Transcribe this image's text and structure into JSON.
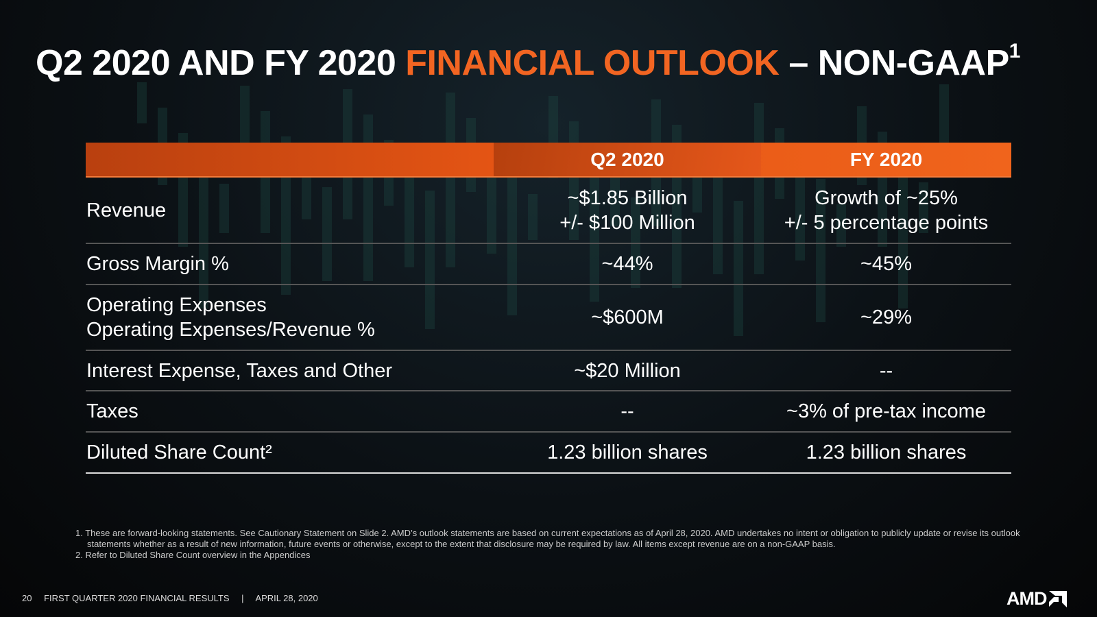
{
  "title": {
    "part1": "Q2 2020 AND FY 2020 ",
    "part2": "FINANCIAL OUTLOOK",
    "part3": " – NON-GAAP",
    "sup": "1"
  },
  "table": {
    "headers": [
      "",
      "Q2 2020",
      "FY 2020"
    ],
    "rows": [
      {
        "label": [
          "Revenue"
        ],
        "q2": [
          "~$1.85 Billion",
          "+/- $100 Million"
        ],
        "fy": [
          "Growth of ~25%",
          "+/- 5 percentage points"
        ]
      },
      {
        "label": [
          "Gross Margin %"
        ],
        "q2": [
          "~44%"
        ],
        "fy": [
          "~45%"
        ]
      },
      {
        "label": [
          "Operating Expenses",
          "Operating Expenses/Revenue %"
        ],
        "q2": [
          "~$600M"
        ],
        "fy": [
          "~29%"
        ]
      },
      {
        "label": [
          "Interest Expense, Taxes and Other"
        ],
        "q2": [
          "~$20 Million"
        ],
        "fy": [
          "--"
        ]
      },
      {
        "label": [
          "Taxes"
        ],
        "q2": [
          "--"
        ],
        "fy": [
          "~3% of pre-tax income"
        ]
      },
      {
        "label": [
          "Diluted Share Count²"
        ],
        "q2": [
          "1.23 billion shares"
        ],
        "fy": [
          "1.23 billion shares"
        ]
      }
    ]
  },
  "footnotes": [
    "1.  These are forward-looking statements.  See Cautionary Statement on Slide 2. AMD’s outlook statements are based on current expectations as of April 28, 2020. AMD undertakes no intent or obligation to publicly update or revise its outlook statements whether as a result of new information, future events or otherwise, except to the extent that disclosure may be required by law.  All items except revenue are on a non-GAAP basis.",
    "2.  Refer to Diluted Share Count overview in the Appendices"
  ],
  "footer": {
    "page": "20",
    "text": "FIRST QUARTER 2020 FINANCIAL RESULTS",
    "sep": "|",
    "date": "APRIL 28, 2020"
  },
  "logo": {
    "text": "AMD"
  },
  "colors": {
    "accent": "#f26522"
  }
}
